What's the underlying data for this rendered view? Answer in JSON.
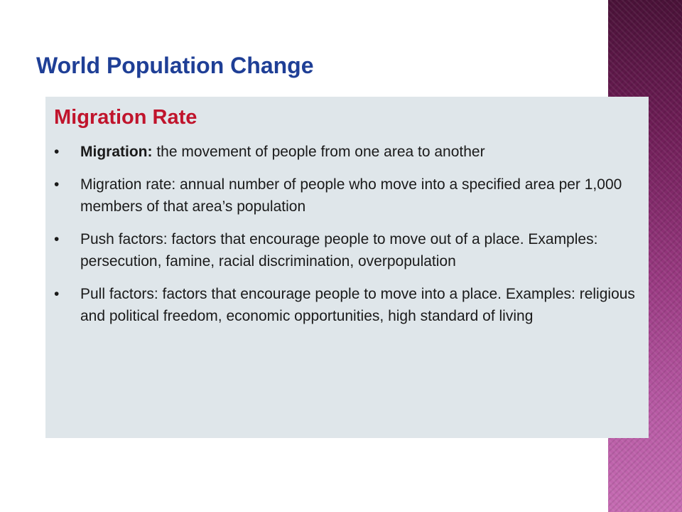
{
  "slide": {
    "title": "World Population Change",
    "section_heading": "Migration Rate",
    "bullet_glyph": "•",
    "bullets": [
      {
        "term": "Migration:",
        "text": " the movement of people from one area to another"
      },
      {
        "term": "",
        "text": "Migration rate: annual number of people who move into a specified area per 1,000 members of that area’s population"
      },
      {
        "term": "",
        "text": "Push factors: factors that encourage people to move out of a place. Examples: persecution, famine, racial discrimination, overpopulation"
      },
      {
        "term": "",
        "text": "Pull factors: factors that encourage people to move into a place. Examples: religious and political freedom, economic opportunities, high standard of living"
      }
    ]
  },
  "colors": {
    "title": "#1f3f96",
    "section_heading": "#c0142c",
    "content_background": "#dfe6ea",
    "side_band": "#9a3a82"
  }
}
